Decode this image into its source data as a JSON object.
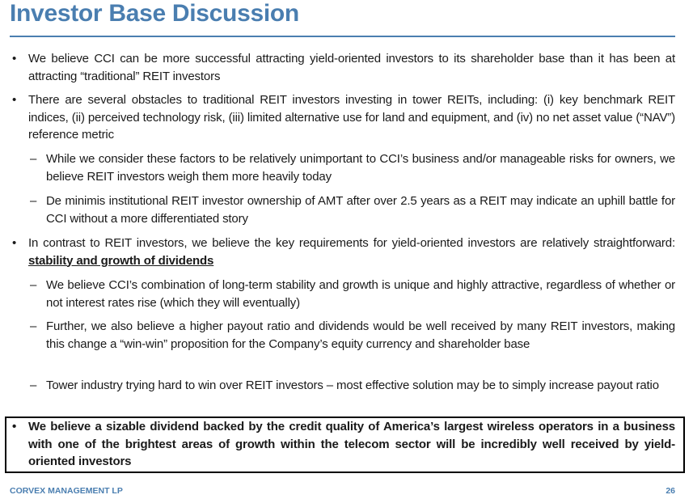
{
  "header": {
    "title": "Investor Base Discussion"
  },
  "bullets": [
    {
      "text": "We believe CCI can be more successful attracting yield-oriented investors to its shareholder base than it has been at attracting “traditional” REIT investors"
    },
    {
      "text": "There are several obstacles to traditional REIT investors investing in tower REITs, including: (i) key benchmark REIT indices, (ii) perceived technology risk, (iii) limited alternative use for land and equipment, and (iv) no net asset value (“NAV”) reference metric",
      "sub": [
        "While we consider these factors to be relatively unimportant to CCI’s business and/or manageable risks for owners, we believe REIT investors weigh them more heavily today",
        "De minimis institutional REIT investor ownership of AMT after over 2.5 years as a REIT may indicate an uphill battle for CCI without a more differentiated story"
      ]
    },
    {
      "text": "In contrast to REIT investors, we believe the key requirements for yield-oriented investors are relatively straightforward:",
      "emphasis": "stability and growth of dividends",
      "sub": [
        "We believe CCI’s combination of long-term stability and growth is unique and highly attractive, regardless of whether or not interest rates rise (which they will eventually)",
        "Further, we also believe a higher payout ratio and dividends would be well received by many REIT investors, making this change a “win-win” proposition for the Company’s equity currency and shareholder base",
        "Tower industry trying hard to win over REIT investors – most effective solution may be to simply increase payout ratio"
      ]
    }
  ],
  "callout": "We believe a sizable dividend backed by the credit quality of America’s largest wireless operators in a business with one of the brightest areas of growth within the telecom sector will be incredibly well received by yield-oriented investors",
  "footer": {
    "company": "CORVEX MANAGEMENT LP",
    "page": "26"
  }
}
